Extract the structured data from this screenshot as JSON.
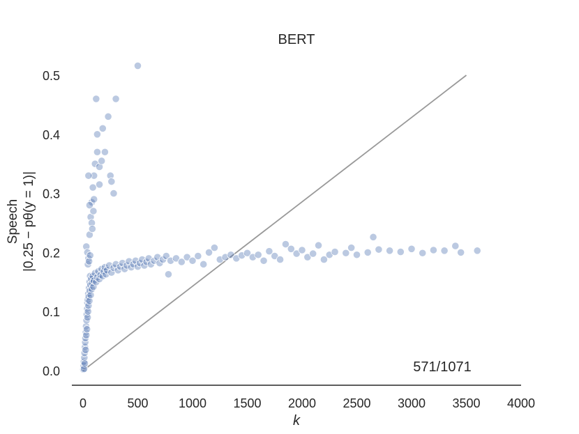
{
  "chart_data": {
    "type": "scatter",
    "title": "BERT",
    "xlabel": "k",
    "ylabel_line1": "Speech",
    "ylabel_line2": "|0.25 − pθ(y = 1)|",
    "annotation": "571/1071",
    "xlim": [
      -50,
      4000
    ],
    "ylim": [
      -0.02,
      0.53
    ],
    "xticks": [
      0,
      500,
      1000,
      1500,
      2000,
      2500,
      3000,
      3500,
      4000
    ],
    "xtick_labels": [
      "0",
      "500",
      "1000",
      "1500",
      "2000",
      "2500",
      "3000",
      "3500",
      "4000"
    ],
    "yticks": [
      0.0,
      0.1,
      0.2,
      0.3,
      0.4,
      0.5
    ],
    "ytick_labels": [
      "0.0",
      "0.1",
      "0.2",
      "0.3",
      "0.4",
      "0.5"
    ],
    "grid": false,
    "point_color": "#4c72b0",
    "reference_line": {
      "color": "#999999",
      "x": [
        0,
        3500
      ],
      "y": [
        0.0,
        0.5
      ]
    },
    "series": [
      {
        "points": [
          [
            3,
            0.002
          ],
          [
            6,
            0.008
          ],
          [
            8,
            0.015
          ],
          [
            10,
            0.003
          ],
          [
            12,
            0.022
          ],
          [
            14,
            0.03
          ],
          [
            16,
            0.012
          ],
          [
            18,
            0.04
          ],
          [
            20,
            0.048
          ],
          [
            22,
            0.055
          ],
          [
            24,
            0.035
          ],
          [
            26,
            0.065
          ],
          [
            28,
            0.075
          ],
          [
            30,
            0.06
          ],
          [
            32,
            0.085
          ],
          [
            34,
            0.095
          ],
          [
            36,
            0.07
          ],
          [
            38,
            0.105
          ],
          [
            40,
            0.115
          ],
          [
            42,
            0.09
          ],
          [
            44,
            0.12
          ],
          [
            46,
            0.1
          ],
          [
            48,
            0.13
          ],
          [
            50,
            0.11
          ],
          [
            52,
            0.125
          ],
          [
            55,
            0.14
          ],
          [
            58,
            0.118
          ],
          [
            60,
            0.15
          ],
          [
            62,
            0.135
          ],
          [
            65,
            0.16
          ],
          [
            68,
            0.145
          ],
          [
            70,
            0.128
          ],
          [
            75,
            0.155
          ],
          [
            80,
            0.138
          ],
          [
            85,
            0.148
          ],
          [
            90,
            0.16
          ],
          [
            95,
            0.142
          ],
          [
            100,
            0.152
          ],
          [
            110,
            0.165
          ],
          [
            120,
            0.15
          ],
          [
            130,
            0.158
          ],
          [
            140,
            0.168
          ],
          [
            150,
            0.155
          ],
          [
            160,
            0.162
          ],
          [
            170,
            0.172
          ],
          [
            180,
            0.16
          ],
          [
            190,
            0.168
          ],
          [
            200,
            0.175
          ],
          [
            210,
            0.163
          ],
          [
            220,
            0.17
          ],
          [
            240,
            0.178
          ],
          [
            260,
            0.166
          ],
          [
            280,
            0.174
          ],
          [
            300,
            0.18
          ],
          [
            320,
            0.17
          ],
          [
            340,
            0.176
          ],
          [
            360,
            0.182
          ],
          [
            380,
            0.172
          ],
          [
            400,
            0.178
          ],
          [
            420,
            0.185
          ],
          [
            440,
            0.175
          ],
          [
            460,
            0.18
          ],
          [
            480,
            0.186
          ],
          [
            500,
            0.176
          ],
          [
            520,
            0.182
          ],
          [
            540,
            0.188
          ],
          [
            560,
            0.178
          ],
          [
            580,
            0.184
          ],
          [
            600,
            0.19
          ],
          [
            620,
            0.18
          ],
          [
            650,
            0.186
          ],
          [
            680,
            0.192
          ],
          [
            700,
            0.182
          ],
          [
            730,
            0.188
          ],
          [
            760,
            0.194
          ],
          [
            780,
            0.163
          ],
          [
            800,
            0.186
          ],
          [
            850,
            0.19
          ],
          [
            900,
            0.184
          ],
          [
            950,
            0.192
          ],
          [
            1000,
            0.186
          ],
          [
            1050,
            0.194
          ],
          [
            1100,
            0.18
          ],
          [
            1150,
            0.2
          ],
          [
            1200,
            0.208
          ],
          [
            1250,
            0.188
          ],
          [
            1300,
            0.192
          ],
          [
            1350,
            0.196
          ],
          [
            1400,
            0.19
          ],
          [
            1450,
            0.195
          ],
          [
            1500,
            0.199
          ],
          [
            1550,
            0.192
          ],
          [
            1600,
            0.196
          ],
          [
            1650,
            0.186
          ],
          [
            1700,
            0.202
          ],
          [
            1750,
            0.194
          ],
          [
            1800,
            0.188
          ],
          [
            1850,
            0.214
          ],
          [
            1900,
            0.206
          ],
          [
            1950,
            0.198
          ],
          [
            2000,
            0.204
          ],
          [
            2050,
            0.192
          ],
          [
            2100,
            0.198
          ],
          [
            2150,
            0.212
          ],
          [
            2200,
            0.188
          ],
          [
            2250,
            0.196
          ],
          [
            2300,
            0.201
          ],
          [
            2400,
            0.199
          ],
          [
            2450,
            0.208
          ],
          [
            2500,
            0.196
          ],
          [
            2600,
            0.2
          ],
          [
            2650,
            0.226
          ],
          [
            2700,
            0.205
          ],
          [
            2800,
            0.203
          ],
          [
            2900,
            0.201
          ],
          [
            3000,
            0.206
          ],
          [
            3100,
            0.199
          ],
          [
            3200,
            0.204
          ],
          [
            3300,
            0.203
          ],
          [
            3400,
            0.211
          ],
          [
            3450,
            0.2
          ],
          [
            3600,
            0.203
          ],
          [
            30,
            0.21
          ],
          [
            40,
            0.2
          ],
          [
            50,
            0.19
          ],
          [
            60,
            0.23
          ],
          [
            70,
            0.26
          ],
          [
            80,
            0.285
          ],
          [
            90,
            0.31
          ],
          [
            100,
            0.33
          ],
          [
            110,
            0.35
          ],
          [
            130,
            0.37
          ],
          [
            150,
            0.345
          ],
          [
            170,
            0.355
          ],
          [
            180,
            0.41
          ],
          [
            200,
            0.37
          ],
          [
            230,
            0.43
          ],
          [
            250,
            0.33
          ],
          [
            260,
            0.32
          ],
          [
            280,
            0.3
          ],
          [
            300,
            0.46
          ],
          [
            50,
            0.33
          ],
          [
            60,
            0.28
          ],
          [
            80,
            0.25
          ],
          [
            100,
            0.29
          ],
          [
            120,
            0.46
          ],
          [
            130,
            0.4
          ],
          [
            150,
            0.315
          ],
          [
            500,
            0.516
          ],
          [
            45,
            0.18
          ],
          [
            55,
            0.185
          ],
          [
            65,
            0.195
          ],
          [
            85,
            0.24
          ],
          [
            95,
            0.27
          ]
        ]
      }
    ]
  }
}
